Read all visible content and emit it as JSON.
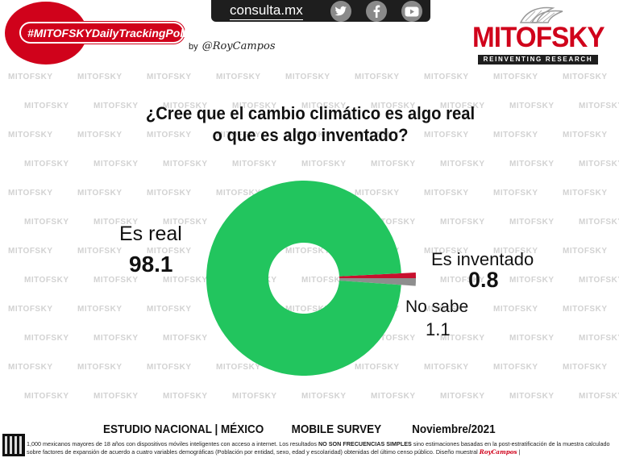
{
  "header": {
    "site": "consulta.mx",
    "social_icons": [
      "twitter-icon",
      "facebook-icon",
      "youtube-icon"
    ],
    "hashtag": "#MITOFSKYDailyTrackingPoll",
    "byline_prefix": "by",
    "byline_signature": "@RoyCampos"
  },
  "logo": {
    "name": "MITOFSKY",
    "tagline": "REINVENTING RESEARCH",
    "brand_color": "#d0021b"
  },
  "watermark_text": "MITOFSKY",
  "chart_data": {
    "type": "pie",
    "style": "donut",
    "title": "¿Cree que el cambio climático es algo real o que es algo inventado?",
    "title_lines": [
      "¿Cree que el cambio climático es algo real",
      "o que es algo inventado?"
    ],
    "slices": [
      {
        "label": "Es real",
        "value": 98.1,
        "color": "#22c55e"
      },
      {
        "label": "Es inventado",
        "value": 0.8,
        "color": "#c8102e"
      },
      {
        "label": "No sabe",
        "value": 1.1,
        "color": "#8e8e8e"
      }
    ]
  },
  "footer": {
    "study": "ESTUDIO NACIONAL | MÉXICO",
    "method": "MOBILE SURVEY",
    "date": "Noviembre/2021",
    "note_part1": "1,000 mexicanos mayores de 18 años con dispositivos móviles inteligentes con acceso a internet. Los resultados ",
    "note_bold": "NO SON FRECUENCIAS SIMPLES",
    "note_part2": " sino estimaciones basadas en la post-estratificación de la muestra calculado sobre factores de expansión de acuerdo a cuatro variables demográficas (Población por entidad, sexo, edad y escolaridad) obtenidas del último censo público. Diseño muestral ",
    "note_signature": "RoyCampos",
    "note_end": " |"
  }
}
